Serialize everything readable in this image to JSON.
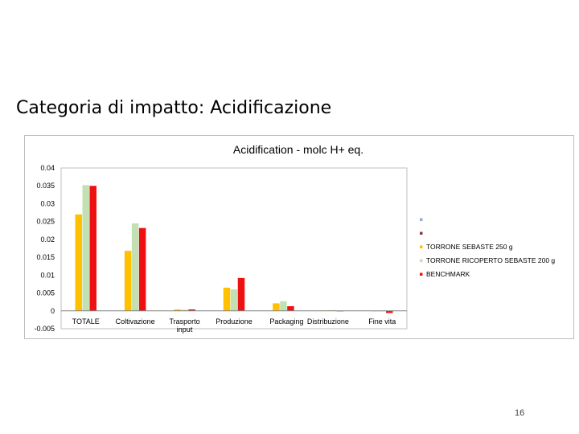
{
  "slide": {
    "title": "Categoria di impatto: Acidificazione",
    "number": "16"
  },
  "chart_data": {
    "type": "bar",
    "title": "Acidification - molc H+ eq.",
    "xlabel": "",
    "ylabel": "",
    "ylim": [
      -0.005,
      0.04
    ],
    "yticks": [
      "0.04",
      "0.035",
      "0.03",
      "0.025",
      "0.02",
      "0.015",
      "0.01",
      "0.005",
      "0",
      "-0.005"
    ],
    "grid": false,
    "legend_position": "right",
    "categories": [
      "TOTALE",
      "Coltivazione",
      "Trasporto input",
      "Produzione",
      "Packaging",
      "Distribuzione",
      "Fine vita"
    ],
    "series": [
      {
        "name": "TORRONE SEBASTE 250 g",
        "color": "#ffc000",
        "values": [
          0.027,
          0.0168,
          0.0004,
          0.0065,
          0.0021,
          0.0001,
          0.0
        ]
      },
      {
        "name": "TORRONE RICOPERTO SEBASTE 200 g",
        "color": "#c3e0b3",
        "values": [
          0.0352,
          0.0245,
          0.0003,
          0.006,
          0.0027,
          0.0002,
          0.0
        ]
      },
      {
        "name": "BENCHMARK",
        "color": "#ee1111",
        "values": [
          0.035,
          0.0232,
          0.0004,
          0.0092,
          0.0013,
          0.0,
          -0.0006
        ]
      }
    ],
    "legend_markers": [
      {
        "color": "#9aa9d1"
      },
      {
        "color": "#8b3a3a"
      }
    ]
  }
}
